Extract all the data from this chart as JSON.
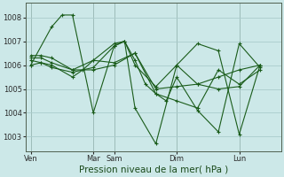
{
  "background_color": "#cce8e8",
  "grid_color": "#aacccc",
  "line_color": "#1a5c1a",
  "xlabel": "Pression niveau de la mer( hPa )",
  "xlabel_fontsize": 7.5,
  "yticks": [
    1003,
    1004,
    1005,
    1006,
    1007,
    1008
  ],
  "ylim": [
    1002.4,
    1008.6
  ],
  "xtick_labels": [
    "Ven",
    "Mar",
    "Sam",
    "Dim",
    "Lun"
  ],
  "xtick_positions": [
    0,
    36,
    48,
    84,
    120
  ],
  "xlim": [
    -3,
    144
  ],
  "series": [
    {
      "x": [
        0,
        12,
        18,
        24,
        36,
        48,
        54,
        60,
        72,
        84,
        96,
        108,
        120,
        132
      ],
      "y": [
        1006.0,
        1007.6,
        1008.1,
        1008.1,
        1004.0,
        1006.8,
        1007.0,
        1004.2,
        1002.7,
        1006.0,
        1006.9,
        1006.6,
        1003.1,
        1006.0
      ]
    },
    {
      "x": [
        0,
        6,
        12,
        24,
        36,
        48,
        60,
        72,
        84,
        96,
        108,
        120,
        132
      ],
      "y": [
        1006.4,
        1006.4,
        1006.3,
        1005.8,
        1005.8,
        1006.0,
        1006.5,
        1005.0,
        1005.1,
        1005.2,
        1005.0,
        1005.1,
        1006.0
      ]
    },
    {
      "x": [
        0,
        6,
        12,
        24,
        36,
        48,
        60,
        72,
        84,
        96,
        108,
        120,
        132
      ],
      "y": [
        1006.3,
        1006.3,
        1006.1,
        1005.8,
        1006.2,
        1006.1,
        1006.5,
        1004.8,
        1004.5,
        1004.2,
        1005.8,
        1005.2,
        1005.8
      ]
    },
    {
      "x": [
        0,
        6,
        12,
        24,
        36,
        48,
        54,
        60,
        72,
        84,
        96,
        108,
        120,
        132
      ],
      "y": [
        1006.2,
        1006.1,
        1005.9,
        1005.7,
        1005.9,
        1006.8,
        1007.0,
        1006.0,
        1005.1,
        1006.0,
        1005.2,
        1005.5,
        1005.8,
        1006.0
      ]
    },
    {
      "x": [
        0,
        6,
        12,
        24,
        30,
        36,
        48,
        54,
        60,
        66,
        72,
        78,
        84,
        96,
        108,
        120,
        132
      ],
      "y": [
        1006.0,
        1006.1,
        1006.0,
        1005.5,
        1005.8,
        1006.2,
        1006.9,
        1007.0,
        1006.2,
        1005.2,
        1004.8,
        1004.5,
        1005.5,
        1004.1,
        1003.2,
        1006.9,
        1005.9
      ]
    }
  ]
}
